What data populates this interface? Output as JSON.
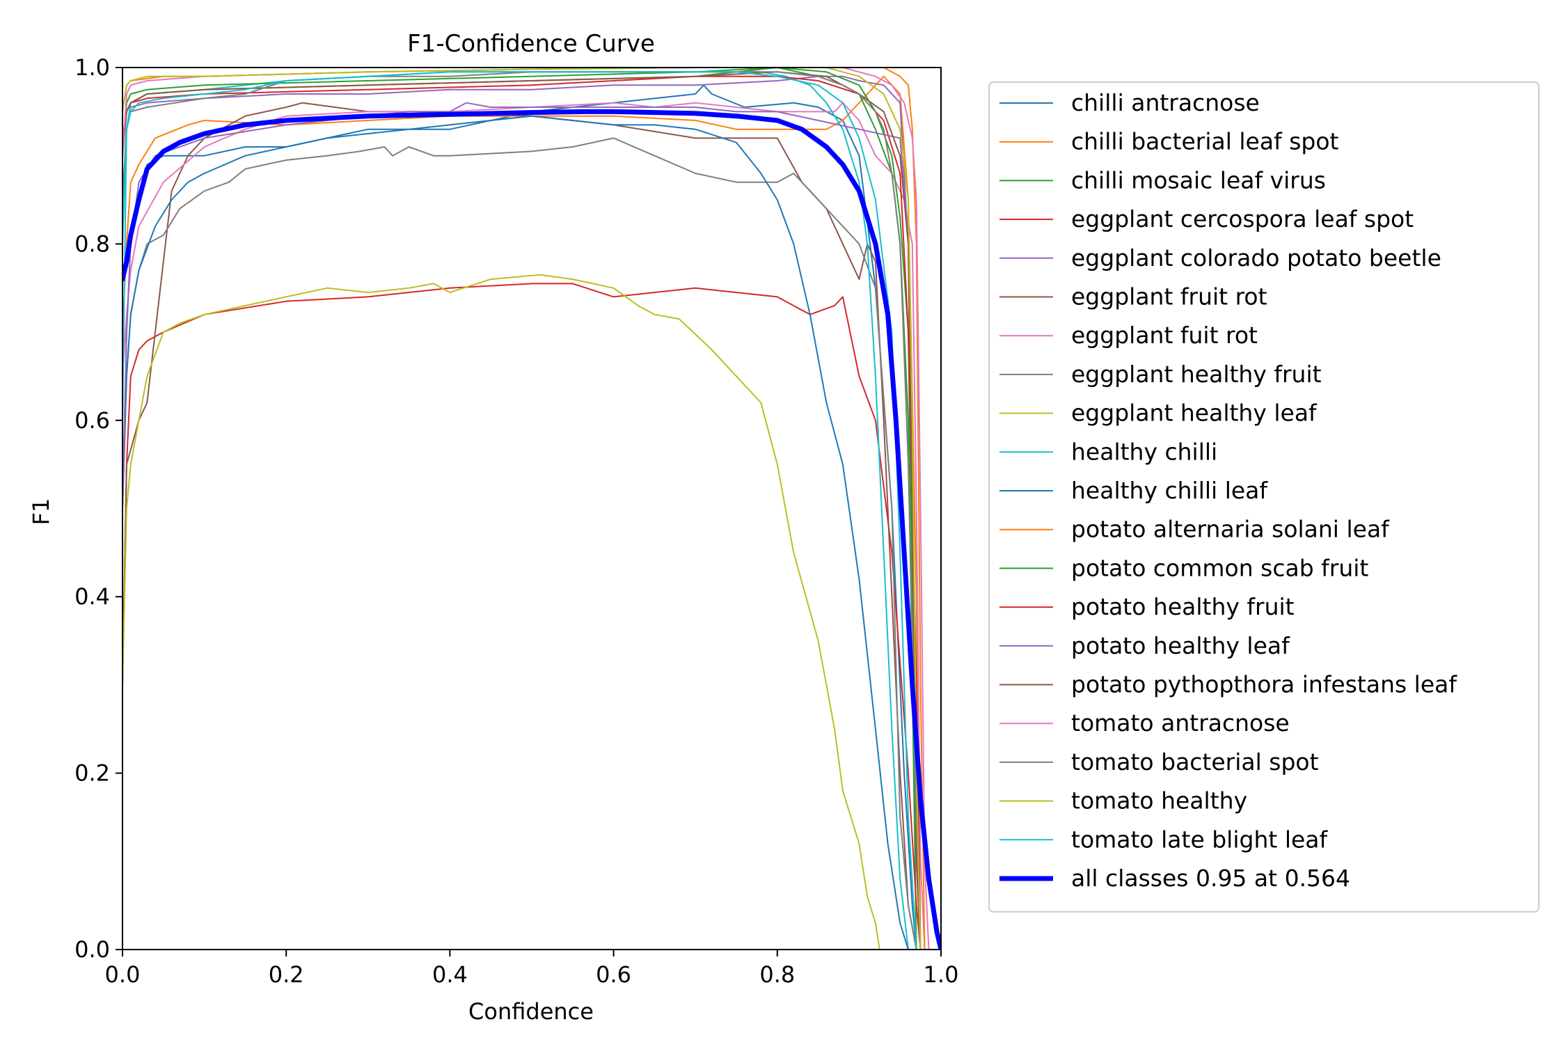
{
  "chart_data": {
    "type": "line",
    "title": "F1-Confidence Curve",
    "xlabel": "Confidence",
    "ylabel": "F1",
    "xlim": [
      0,
      1
    ],
    "ylim": [
      0,
      1
    ],
    "xticks": [
      0.0,
      0.2,
      0.4,
      0.6,
      0.8,
      1.0
    ],
    "yticks": [
      0.0,
      0.2,
      0.4,
      0.6,
      0.8,
      1.0
    ],
    "xtick_labels": [
      "0.0",
      "0.2",
      "0.4",
      "0.6",
      "0.8",
      "1.0"
    ],
    "ytick_labels": [
      "0.0",
      "0.2",
      "0.4",
      "0.6",
      "0.8",
      "1.0"
    ],
    "grid": false,
    "legend_position": "outside right",
    "series": [
      {
        "name": "chilli antracnose",
        "color": "#1f77b4",
        "lw": 2,
        "x": [
          0,
          0.005,
          0.01,
          0.02,
          0.03,
          0.05,
          0.1,
          0.15,
          0.2,
          0.3,
          0.4,
          0.5,
          0.6,
          0.7,
          0.71,
          0.72,
          0.76,
          0.82,
          0.85,
          0.88,
          0.9,
          0.92,
          0.94,
          0.955,
          0.965,
          0.97
        ],
        "y": [
          0.5,
          0.7,
          0.8,
          0.85,
          0.89,
          0.9,
          0.9,
          0.91,
          0.91,
          0.93,
          0.93,
          0.95,
          0.96,
          0.97,
          0.98,
          0.97,
          0.955,
          0.96,
          0.955,
          0.94,
          0.9,
          0.75,
          0.5,
          0.2,
          0.05,
          0
        ]
      },
      {
        "name": "chilli bacterial leaf spot",
        "color": "#ff7f0e",
        "lw": 2,
        "x": [
          0,
          0.005,
          0.01,
          0.02,
          0.04,
          0.08,
          0.1,
          0.2,
          0.3,
          0.4,
          0.5,
          0.6,
          0.7,
          0.75,
          0.8,
          0.84,
          0.86,
          0.88,
          0.9,
          0.93,
          0.95,
          0.96,
          0.97,
          0.975
        ],
        "y": [
          0.7,
          0.8,
          0.87,
          0.89,
          0.92,
          0.935,
          0.94,
          0.935,
          0.94,
          0.945,
          0.945,
          0.945,
          0.94,
          0.93,
          0.93,
          0.93,
          0.93,
          0.94,
          0.96,
          0.99,
          0.97,
          0.85,
          0.4,
          0
        ]
      },
      {
        "name": "chilli mosaic leaf virus",
        "color": "#2ca02c",
        "lw": 2,
        "x": [
          0,
          0.005,
          0.01,
          0.03,
          0.1,
          0.3,
          0.5,
          0.7,
          0.8,
          0.85,
          0.88,
          0.9,
          0.92,
          0.94,
          0.95,
          0.96,
          0.965,
          0.97
        ],
        "y": [
          0.9,
          0.95,
          0.96,
          0.97,
          0.975,
          0.98,
          0.985,
          0.99,
          1.0,
          0.99,
          0.98,
          0.97,
          0.93,
          0.88,
          0.8,
          0.6,
          0.3,
          0
        ]
      },
      {
        "name": "eggplant cercospora leaf spot",
        "color": "#d62728",
        "lw": 2,
        "x": [
          0,
          0.005,
          0.01,
          0.02,
          0.03,
          0.05,
          0.1,
          0.2,
          0.3,
          0.4,
          0.5,
          0.55,
          0.6,
          0.7,
          0.8,
          0.84,
          0.87,
          0.88,
          0.9,
          0.92,
          0.94,
          0.96,
          0.97,
          0.975
        ],
        "y": [
          0.3,
          0.55,
          0.65,
          0.68,
          0.69,
          0.7,
          0.72,
          0.735,
          0.74,
          0.75,
          0.755,
          0.755,
          0.74,
          0.75,
          0.74,
          0.72,
          0.73,
          0.74,
          0.65,
          0.6,
          0.45,
          0.2,
          0.05,
          0
        ]
      },
      {
        "name": "eggplant colorado potato beetle",
        "color": "#9467bd",
        "lw": 2,
        "x": [
          0,
          0.005,
          0.01,
          0.03,
          0.1,
          0.2,
          0.3,
          0.4,
          0.5,
          0.6,
          0.7,
          0.8,
          0.85,
          0.88,
          0.9,
          0.93,
          0.95,
          0.96,
          0.965,
          0.97,
          0.975
        ],
        "y": [
          0.85,
          0.93,
          0.955,
          0.96,
          0.965,
          0.97,
          0.97,
          0.975,
          0.975,
          0.98,
          0.98,
          0.985,
          0.99,
          0.99,
          0.985,
          0.98,
          0.96,
          0.8,
          0.4,
          0.1,
          0
        ]
      },
      {
        "name": "eggplant fruit rot",
        "color": "#8c564b",
        "lw": 2,
        "x": [
          0,
          0.005,
          0.02,
          0.03,
          0.04,
          0.05,
          0.06,
          0.07,
          0.08,
          0.1,
          0.15,
          0.2,
          0.22,
          0.3,
          0.4,
          0.5,
          0.6,
          0.7,
          0.8,
          0.83,
          0.86,
          0.87,
          0.88,
          0.9,
          0.91,
          0.92,
          0.93,
          0.95,
          0.96,
          0.97
        ],
        "y": [
          0.3,
          0.55,
          0.6,
          0.62,
          0.7,
          0.78,
          0.86,
          0.88,
          0.9,
          0.92,
          0.945,
          0.955,
          0.96,
          0.95,
          0.95,
          0.945,
          0.935,
          0.92,
          0.92,
          0.87,
          0.84,
          0.82,
          0.8,
          0.76,
          0.8,
          0.78,
          0.6,
          0.2,
          0.05,
          0
        ]
      },
      {
        "name": "eggplant fuit rot",
        "color": "#e377c2",
        "lw": 2,
        "x": [
          0,
          0.005,
          0.01,
          0.02,
          0.05,
          0.1,
          0.15,
          0.2,
          0.3,
          0.4,
          0.5,
          0.6,
          0.65,
          0.7,
          0.75,
          0.8,
          0.85,
          0.87,
          0.88,
          0.9,
          0.92,
          0.94,
          0.955,
          0.965,
          0.97,
          0.975,
          0.98
        ],
        "y": [
          0.65,
          0.72,
          0.77,
          0.82,
          0.87,
          0.91,
          0.93,
          0.945,
          0.95,
          0.95,
          0.955,
          0.96,
          0.955,
          0.96,
          0.955,
          0.95,
          0.95,
          0.95,
          0.96,
          0.94,
          0.9,
          0.88,
          0.85,
          0.8,
          0.5,
          0.1,
          0
        ]
      },
      {
        "name": "eggplant healthy fruit",
        "color": "#7f7f7f",
        "lw": 2,
        "x": [
          0,
          0.005,
          0.01,
          0.02,
          0.03,
          0.05,
          0.07,
          0.1,
          0.13,
          0.15,
          0.2,
          0.25,
          0.29,
          0.32,
          0.33,
          0.35,
          0.38,
          0.4,
          0.5,
          0.55,
          0.6,
          0.65,
          0.7,
          0.75,
          0.8,
          0.82,
          0.85,
          0.88,
          0.9,
          0.92,
          0.94,
          0.95,
          0.96,
          0.97
        ],
        "y": [
          0.5,
          0.65,
          0.72,
          0.77,
          0.8,
          0.81,
          0.84,
          0.86,
          0.87,
          0.885,
          0.895,
          0.9,
          0.905,
          0.91,
          0.9,
          0.91,
          0.9,
          0.9,
          0.905,
          0.91,
          0.92,
          0.9,
          0.88,
          0.87,
          0.87,
          0.88,
          0.85,
          0.82,
          0.8,
          0.75,
          0.5,
          0.15,
          0.05,
          0
        ]
      },
      {
        "name": "eggplant healthy leaf",
        "color": "#bcbd22",
        "lw": 2,
        "x": [
          0,
          0.005,
          0.01,
          0.02,
          0.03,
          0.05,
          0.07,
          0.1,
          0.15,
          0.2,
          0.25,
          0.3,
          0.35,
          0.38,
          0.4,
          0.45,
          0.51,
          0.55,
          0.6,
          0.63,
          0.65,
          0.68,
          0.72,
          0.74,
          0.78,
          0.8,
          0.82,
          0.85,
          0.87,
          0.88,
          0.9,
          0.91,
          0.92,
          0.925
        ],
        "y": [
          0.3,
          0.5,
          0.55,
          0.6,
          0.65,
          0.7,
          0.71,
          0.72,
          0.73,
          0.74,
          0.75,
          0.745,
          0.75,
          0.755,
          0.745,
          0.76,
          0.765,
          0.76,
          0.75,
          0.73,
          0.72,
          0.715,
          0.68,
          0.66,
          0.62,
          0.55,
          0.45,
          0.35,
          0.25,
          0.18,
          0.12,
          0.06,
          0.03,
          0
        ]
      },
      {
        "name": "healthy chilli",
        "color": "#17becf",
        "lw": 2,
        "x": [
          0,
          0.005,
          0.01,
          0.03,
          0.1,
          0.2,
          0.3,
          0.4,
          0.5,
          0.6,
          0.7,
          0.78,
          0.81,
          0.84,
          0.86,
          0.88,
          0.89,
          0.9,
          0.91,
          0.92,
          0.93,
          0.94,
          0.95,
          0.96
        ],
        "y": [
          0.6,
          0.93,
          0.96,
          0.97,
          0.975,
          0.985,
          0.99,
          0.995,
          0.995,
          0.995,
          0.995,
          0.995,
          0.99,
          0.98,
          0.96,
          0.93,
          0.9,
          0.87,
          0.8,
          0.65,
          0.45,
          0.25,
          0.08,
          0
        ]
      },
      {
        "name": "healthy chilli leaf",
        "color": "#1f77b4",
        "lw": 2,
        "x": [
          0,
          0.005,
          0.01,
          0.02,
          0.04,
          0.06,
          0.08,
          0.1,
          0.15,
          0.2,
          0.25,
          0.3,
          0.35,
          0.4,
          0.45,
          0.5,
          0.55,
          0.6,
          0.65,
          0.7,
          0.75,
          0.78,
          0.8,
          0.82,
          0.84,
          0.86,
          0.88,
          0.9,
          0.92,
          0.935,
          0.95,
          0.96
        ],
        "y": [
          0.5,
          0.65,
          0.72,
          0.77,
          0.82,
          0.85,
          0.87,
          0.88,
          0.9,
          0.91,
          0.92,
          0.925,
          0.93,
          0.935,
          0.94,
          0.945,
          0.94,
          0.935,
          0.935,
          0.93,
          0.915,
          0.88,
          0.85,
          0.8,
          0.72,
          0.62,
          0.55,
          0.42,
          0.25,
          0.12,
          0.03,
          0
        ]
      },
      {
        "name": "potato alternaria solani leaf",
        "color": "#ff7f0e",
        "lw": 2,
        "x": [
          0,
          0.005,
          0.01,
          0.05,
          0.1,
          0.3,
          0.5,
          0.7,
          0.8,
          0.85,
          0.9,
          0.93,
          0.95,
          0.96,
          0.965,
          0.97,
          0.975,
          0.98
        ],
        "y": [
          0.95,
          0.98,
          0.985,
          0.99,
          0.99,
          0.995,
          0.998,
          1.0,
          1.0,
          1.0,
          1.0,
          1.0,
          0.99,
          0.98,
          0.93,
          0.8,
          0.3,
          0
        ]
      },
      {
        "name": "potato common scab fruit",
        "color": "#2ca02c",
        "lw": 2,
        "x": [
          0,
          0.005,
          0.01,
          0.03,
          0.1,
          0.3,
          0.5,
          0.7,
          0.8,
          0.86,
          0.9,
          0.92,
          0.94,
          0.95,
          0.96,
          0.965,
          0.97,
          0.975
        ],
        "y": [
          0.9,
          0.96,
          0.97,
          0.975,
          0.98,
          0.985,
          0.99,
          0.995,
          1.0,
          0.995,
          0.98,
          0.95,
          0.9,
          0.83,
          0.7,
          0.4,
          0.1,
          0
        ]
      },
      {
        "name": "potato healthy fruit",
        "color": "#d62728",
        "lw": 2,
        "x": [
          0,
          0.005,
          0.01,
          0.03,
          0.1,
          0.3,
          0.5,
          0.6,
          0.7,
          0.8,
          0.85,
          0.9,
          0.93,
          0.95,
          0.96,
          0.97,
          0.975
        ],
        "y": [
          0.92,
          0.95,
          0.96,
          0.965,
          0.97,
          0.975,
          0.98,
          0.985,
          0.99,
          0.99,
          0.985,
          0.97,
          0.94,
          0.88,
          0.7,
          0.3,
          0
        ]
      },
      {
        "name": "potato healthy leaf",
        "color": "#9467bd",
        "lw": 2,
        "x": [
          0,
          0.005,
          0.01,
          0.02,
          0.04,
          0.1,
          0.2,
          0.25,
          0.3,
          0.35,
          0.4,
          0.42,
          0.45,
          0.5,
          0.55,
          0.6,
          0.65,
          0.7,
          0.75,
          0.8,
          0.85,
          0.9,
          0.95,
          0.96,
          0.97,
          0.975
        ],
        "y": [
          0.5,
          0.7,
          0.8,
          0.87,
          0.9,
          0.92,
          0.935,
          0.94,
          0.945,
          0.95,
          0.95,
          0.96,
          0.955,
          0.955,
          0.955,
          0.955,
          0.955,
          0.955,
          0.95,
          0.95,
          0.94,
          0.93,
          0.92,
          0.8,
          0.2,
          0
        ]
      },
      {
        "name": "potato pythopthora infestans leaf",
        "color": "#8c564b",
        "lw": 2,
        "x": [
          0,
          0.005,
          0.01,
          0.03,
          0.1,
          0.3,
          0.5,
          0.7,
          0.8,
          0.86,
          0.9,
          0.93,
          0.95,
          0.96,
          0.965,
          0.97,
          0.975
        ],
        "y": [
          0.9,
          0.95,
          0.96,
          0.97,
          0.975,
          0.98,
          0.985,
          0.99,
          0.995,
          0.99,
          0.97,
          0.95,
          0.9,
          0.8,
          0.5,
          0.1,
          0
        ]
      },
      {
        "name": "tomato antracnose",
        "color": "#e377c2",
        "lw": 2,
        "x": [
          0,
          0.005,
          0.01,
          0.03,
          0.1,
          0.3,
          0.5,
          0.7,
          0.8,
          0.88,
          0.92,
          0.94,
          0.955,
          0.965,
          0.97,
          0.975,
          0.98,
          0.985
        ],
        "y": [
          0.9,
          0.97,
          0.98,
          0.985,
          0.99,
          0.995,
          0.998,
          1.0,
          1.0,
          1.0,
          0.99,
          0.98,
          0.96,
          0.92,
          0.85,
          0.5,
          0.1,
          0
        ]
      },
      {
        "name": "tomato bacterial spot",
        "color": "#7f7f7f",
        "lw": 2,
        "x": [
          0,
          0.005,
          0.01,
          0.03,
          0.1,
          0.15,
          0.2,
          0.3,
          0.4,
          0.5,
          0.6,
          0.7,
          0.8,
          0.85,
          0.88,
          0.9,
          0.92,
          0.93,
          0.94,
          0.95,
          0.96,
          0.97,
          0.975
        ],
        "y": [
          0.85,
          0.93,
          0.95,
          0.955,
          0.965,
          0.97,
          0.985,
          0.99,
          0.99,
          0.995,
          0.995,
          0.995,
          0.995,
          0.99,
          0.98,
          0.97,
          0.95,
          0.93,
          0.88,
          0.8,
          0.55,
          0.15,
          0
        ]
      },
      {
        "name": "tomato healthy",
        "color": "#bcbd22",
        "lw": 2,
        "x": [
          0,
          0.005,
          0.01,
          0.03,
          0.1,
          0.3,
          0.5,
          0.7,
          0.8,
          0.86,
          0.9,
          0.93,
          0.95,
          0.96,
          0.965,
          0.97,
          0.975
        ],
        "y": [
          0.95,
          0.98,
          0.985,
          0.99,
          0.99,
          0.995,
          0.998,
          1.0,
          1.0,
          1.0,
          0.99,
          0.97,
          0.93,
          0.85,
          0.6,
          0.2,
          0
        ]
      },
      {
        "name": "tomato late blight leaf",
        "color": "#17becf",
        "lw": 2,
        "x": [
          0,
          0.005,
          0.01,
          0.02,
          0.05,
          0.1,
          0.15,
          0.2,
          0.3,
          0.4,
          0.5,
          0.6,
          0.7,
          0.75,
          0.8,
          0.85,
          0.88,
          0.9,
          0.92,
          0.94,
          0.95,
          0.96,
          0.97
        ],
        "y": [
          0.8,
          0.93,
          0.95,
          0.96,
          0.965,
          0.97,
          0.975,
          0.985,
          0.99,
          0.995,
          0.995,
          0.995,
          0.995,
          0.995,
          0.99,
          0.98,
          0.96,
          0.92,
          0.85,
          0.7,
          0.45,
          0.15,
          0
        ]
      },
      {
        "name": "all classes 0.95 at 0.564",
        "color": "#0000ff",
        "lw": 7,
        "x": [
          0,
          0.005,
          0.01,
          0.02,
          0.03,
          0.05,
          0.07,
          0.1,
          0.15,
          0.2,
          0.3,
          0.4,
          0.5,
          0.564,
          0.6,
          0.7,
          0.75,
          0.8,
          0.83,
          0.86,
          0.88,
          0.9,
          0.92,
          0.935,
          0.945,
          0.955,
          0.965,
          0.975,
          0.985,
          0.995,
          1.0
        ],
        "y": [
          0.76,
          0.78,
          0.81,
          0.85,
          0.885,
          0.905,
          0.915,
          0.925,
          0.935,
          0.94,
          0.945,
          0.947,
          0.949,
          0.95,
          0.95,
          0.948,
          0.945,
          0.94,
          0.93,
          0.91,
          0.89,
          0.86,
          0.8,
          0.72,
          0.6,
          0.45,
          0.3,
          0.17,
          0.08,
          0.02,
          0
        ]
      }
    ]
  }
}
